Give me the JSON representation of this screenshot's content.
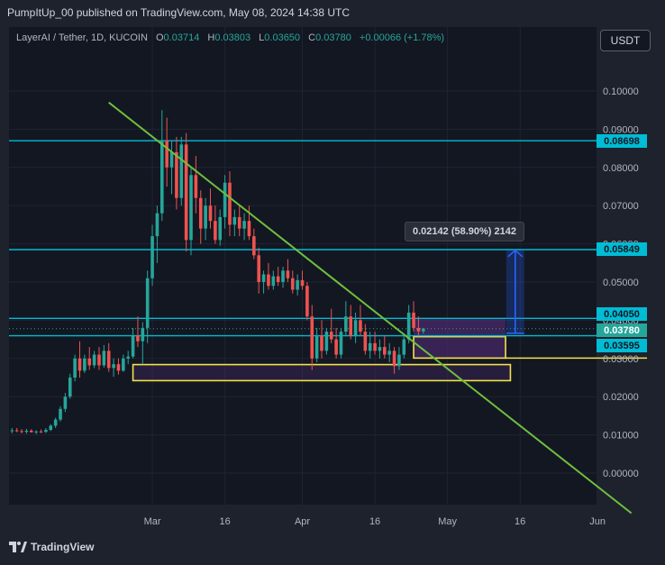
{
  "header": {
    "publisher": "PumpItUp_00 published on TradingView.com, May 08, 2024 14:38 UTC"
  },
  "legend": {
    "symbol": "LayerAI / Tether, 1D, KUCOIN",
    "o_label": "O",
    "o_value": "0.03714",
    "h_label": "H",
    "h_value": "0.03803",
    "l_label": "L",
    "l_value": "0.03650",
    "c_label": "C",
    "c_value": "0.03780",
    "change": "+0.00066 (+1.78%)"
  },
  "currency_button": "USDT",
  "footer": {
    "brand": "TradingView"
  },
  "measure": {
    "label": "0.02142 (58.90%) 2142"
  },
  "price_tags": {
    "top_line": "0.08698",
    "mid_line": "0.05849",
    "upper_zone": "0.04050",
    "last_price": "0.03780",
    "lower_zone": "0.03595"
  },
  "colors": {
    "background": "#131722",
    "up": "#26a69a",
    "down": "#ef5350",
    "cyan_line": "#00bcd4",
    "trendline": "#6fbf3f",
    "rect_border": "#f2e24a",
    "zone_fill": "#4a2a6a",
    "measure": "#2962ff"
  },
  "chart_data": {
    "type": "candlestick",
    "ylim": [
      -0.01,
      0.11
    ],
    "y_ticks": [
      "0.10000",
      "0.09000",
      "0.08000",
      "0.07000",
      "0.06000",
      "0.05000",
      "0.04000",
      "0.03000",
      "0.02000",
      "0.01000",
      "0.00000"
    ],
    "x_ticks": [
      {
        "label": "Mar",
        "day": 29
      },
      {
        "label": "16",
        "day": 44
      },
      {
        "label": "Apr",
        "day": 60
      },
      {
        "label": "16",
        "day": 75
      },
      {
        "label": "May",
        "day": 90
      },
      {
        "label": "16",
        "day": 105
      },
      {
        "label": "Jun",
        "day": 121
      }
    ],
    "horizontal_lines": [
      0.08698,
      0.05849,
      0.0405,
      0.03595
    ],
    "last_price": 0.0378,
    "trendline": [
      [
        20,
        0.097
      ],
      [
        128,
        -0.0105
      ]
    ],
    "zones": [
      {
        "x0": 83,
        "x1": 102,
        "y0": 0.0357,
        "y1": 0.0405,
        "fill": true
      },
      {
        "x0": 83,
        "x1": 102,
        "y0": 0.0301,
        "y1": 0.0357,
        "border": true
      },
      {
        "x0": 25,
        "x1": 103,
        "y0": 0.0242,
        "y1": 0.0284,
        "border": true
      }
    ],
    "measure": {
      "x": 104,
      "from": 0.0366,
      "to": 0.0583,
      "label": "0.02142 (58.90%) 2142"
    },
    "candles": [
      [
        0,
        0.011,
        0.0118,
        0.0104,
        0.0112
      ],
      [
        1,
        0.0112,
        0.0118,
        0.0107,
        0.011
      ],
      [
        2,
        0.011,
        0.0115,
        0.0104,
        0.0108
      ],
      [
        3,
        0.0108,
        0.0116,
        0.0103,
        0.0111
      ],
      [
        4,
        0.0111,
        0.0115,
        0.0106,
        0.0107
      ],
      [
        5,
        0.0107,
        0.0112,
        0.0102,
        0.0109
      ],
      [
        6,
        0.0109,
        0.0114,
        0.0105,
        0.0108
      ],
      [
        7,
        0.0108,
        0.0118,
        0.0105,
        0.0113
      ],
      [
        8,
        0.0113,
        0.0128,
        0.011,
        0.0124
      ],
      [
        9,
        0.0124,
        0.0145,
        0.0118,
        0.014
      ],
      [
        10,
        0.014,
        0.0175,
        0.0135,
        0.0168
      ],
      [
        11,
        0.0168,
        0.021,
        0.016,
        0.02
      ],
      [
        12,
        0.02,
        0.026,
        0.0195,
        0.025
      ],
      [
        13,
        0.025,
        0.031,
        0.024,
        0.03
      ],
      [
        14,
        0.03,
        0.0345,
        0.025,
        0.0268
      ],
      [
        15,
        0.0268,
        0.031,
        0.0262,
        0.03
      ],
      [
        16,
        0.03,
        0.033,
        0.027,
        0.0282
      ],
      [
        17,
        0.0282,
        0.032,
        0.0275,
        0.031
      ],
      [
        18,
        0.031,
        0.033,
        0.027,
        0.0282
      ],
      [
        19,
        0.0282,
        0.0335,
        0.0276,
        0.032
      ],
      [
        20,
        0.032,
        0.034,
        0.0265,
        0.0275
      ],
      [
        21,
        0.0275,
        0.03,
        0.0252,
        0.0285
      ],
      [
        22,
        0.0285,
        0.03,
        0.0258,
        0.0268
      ],
      [
        23,
        0.0268,
        0.031,
        0.0265,
        0.03
      ],
      [
        24,
        0.03,
        0.032,
        0.0285,
        0.0305
      ],
      [
        25,
        0.0305,
        0.038,
        0.03,
        0.036
      ],
      [
        26,
        0.036,
        0.041,
        0.033,
        0.0345
      ],
      [
        27,
        0.0345,
        0.0395,
        0.0285,
        0.038
      ],
      [
        28,
        0.038,
        0.053,
        0.034,
        0.051
      ],
      [
        29,
        0.051,
        0.065,
        0.049,
        0.062
      ],
      [
        30,
        0.062,
        0.07,
        0.055,
        0.068
      ],
      [
        31,
        0.068,
        0.095,
        0.066,
        0.087
      ],
      [
        32,
        0.087,
        0.093,
        0.075,
        0.08
      ],
      [
        33,
        0.08,
        0.087,
        0.073,
        0.084
      ],
      [
        34,
        0.084,
        0.088,
        0.069,
        0.072
      ],
      [
        35,
        0.072,
        0.088,
        0.07,
        0.086
      ],
      [
        36,
        0.086,
        0.089,
        0.058,
        0.061
      ],
      [
        37,
        0.061,
        0.08,
        0.057,
        0.078
      ],
      [
        38,
        0.078,
        0.083,
        0.068,
        0.072
      ],
      [
        39,
        0.072,
        0.074,
        0.06,
        0.064
      ],
      [
        40,
        0.064,
        0.072,
        0.061,
        0.07
      ],
      [
        41,
        0.07,
        0.0745,
        0.064,
        0.066
      ],
      [
        42,
        0.066,
        0.07,
        0.06,
        0.061
      ],
      [
        43,
        0.061,
        0.069,
        0.0595,
        0.067
      ],
      [
        44,
        0.067,
        0.078,
        0.064,
        0.076
      ],
      [
        45,
        0.076,
        0.079,
        0.062,
        0.065
      ],
      [
        46,
        0.065,
        0.069,
        0.062,
        0.067
      ],
      [
        47,
        0.067,
        0.07,
        0.062,
        0.064
      ],
      [
        48,
        0.064,
        0.068,
        0.061,
        0.066
      ],
      [
        49,
        0.066,
        0.07,
        0.061,
        0.062
      ],
      [
        50,
        0.062,
        0.064,
        0.056,
        0.057
      ],
      [
        51,
        0.057,
        0.059,
        0.047,
        0.05
      ],
      [
        52,
        0.05,
        0.053,
        0.047,
        0.052
      ],
      [
        53,
        0.052,
        0.055,
        0.048,
        0.049
      ],
      [
        54,
        0.049,
        0.053,
        0.048,
        0.0515
      ],
      [
        55,
        0.0515,
        0.054,
        0.049,
        0.05
      ],
      [
        56,
        0.05,
        0.054,
        0.0485,
        0.053
      ],
      [
        57,
        0.053,
        0.056,
        0.05,
        0.051
      ],
      [
        58,
        0.051,
        0.053,
        0.047,
        0.048
      ],
      [
        59,
        0.048,
        0.052,
        0.0465,
        0.0505
      ],
      [
        60,
        0.0505,
        0.053,
        0.048,
        0.049
      ],
      [
        61,
        0.049,
        0.05,
        0.04,
        0.041
      ],
      [
        62,
        0.041,
        0.044,
        0.027,
        0.03
      ],
      [
        63,
        0.03,
        0.038,
        0.029,
        0.036
      ],
      [
        64,
        0.036,
        0.04,
        0.03,
        0.032
      ],
      [
        65,
        0.032,
        0.038,
        0.031,
        0.037
      ],
      [
        66,
        0.037,
        0.043,
        0.034,
        0.035
      ],
      [
        67,
        0.035,
        0.038,
        0.03,
        0.031
      ],
      [
        68,
        0.031,
        0.038,
        0.03,
        0.037
      ],
      [
        69,
        0.037,
        0.045,
        0.036,
        0.041
      ],
      [
        70,
        0.041,
        0.044,
        0.035,
        0.036
      ],
      [
        71,
        0.036,
        0.042,
        0.034,
        0.04
      ],
      [
        72,
        0.04,
        0.044,
        0.036,
        0.037
      ],
      [
        73,
        0.037,
        0.039,
        0.031,
        0.032
      ],
      [
        74,
        0.032,
        0.037,
        0.03,
        0.034
      ],
      [
        75,
        0.034,
        0.037,
        0.031,
        0.032
      ],
      [
        76,
        0.032,
        0.035,
        0.03,
        0.033
      ],
      [
        77,
        0.033,
        0.036,
        0.03,
        0.031
      ],
      [
        78,
        0.031,
        0.034,
        0.029,
        0.032
      ],
      [
        79,
        0.032,
        0.033,
        0.026,
        0.028
      ],
      [
        80,
        0.028,
        0.033,
        0.027,
        0.031
      ],
      [
        81,
        0.031,
        0.036,
        0.03,
        0.035
      ],
      [
        82,
        0.035,
        0.044,
        0.034,
        0.042
      ],
      [
        83,
        0.042,
        0.045,
        0.037,
        0.038
      ],
      [
        84,
        0.038,
        0.041,
        0.036,
        0.0371
      ],
      [
        85,
        0.0371,
        0.038,
        0.0365,
        0.0378
      ]
    ]
  }
}
